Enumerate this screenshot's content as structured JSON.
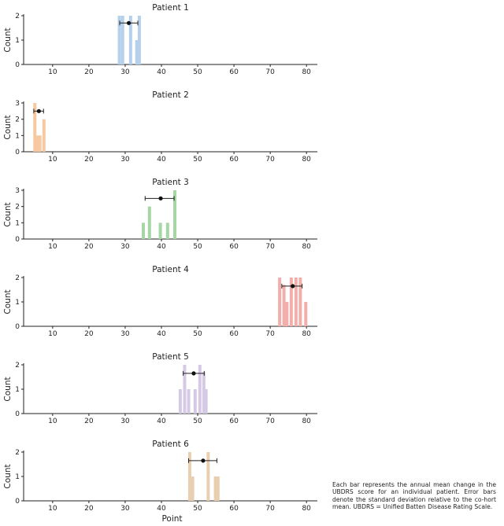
{
  "chart_data": {
    "type": "bar",
    "xlabel": "Point",
    "ylabel": "Count",
    "xlim": [
      2,
      83
    ],
    "xticks": [
      10,
      20,
      30,
      40,
      50,
      60,
      70,
      80
    ],
    "panels": [
      {
        "title": "Patient 1",
        "color": "#b4d0ea",
        "ylim": [
          0,
          2
        ],
        "yticks": [
          0,
          1,
          2
        ],
        "mean": 31,
        "sd_low": 28.5,
        "sd_high": 33.5,
        "mean_y": 1.7,
        "bars": [
          {
            "x": 28.4,
            "y": 2
          },
          {
            "x": 29.3,
            "y": 2
          },
          {
            "x": 31.5,
            "y": 2
          },
          {
            "x": 33.2,
            "y": 1
          },
          {
            "x": 33.9,
            "y": 2
          }
        ]
      },
      {
        "title": "Patient 2",
        "color": "#f6c9a1",
        "ylim": [
          0,
          3
        ],
        "yticks": [
          0,
          1,
          2,
          3
        ],
        "mean": 6.2,
        "sd_low": 4.8,
        "sd_high": 7.5,
        "mean_y": 2.5,
        "bars": [
          {
            "x": 5.1,
            "y": 3
          },
          {
            "x": 5.8,
            "y": 1
          },
          {
            "x": 6.5,
            "y": 1
          },
          {
            "x": 7.6,
            "y": 2
          }
        ]
      },
      {
        "title": "Patient 3",
        "color": "#a5d6a4",
        "ylim": [
          0,
          3
        ],
        "yticks": [
          0,
          1,
          2,
          3
        ],
        "mean": 39.8,
        "sd_low": 35.5,
        "sd_high": 43.5,
        "mean_y": 2.5,
        "bars": [
          {
            "x": 35,
            "y": 1
          },
          {
            "x": 36.7,
            "y": 2
          },
          {
            "x": 39.7,
            "y": 1
          },
          {
            "x": 41.7,
            "y": 1
          },
          {
            "x": 43.7,
            "y": 3
          }
        ]
      },
      {
        "title": "Patient 4",
        "color": "#f2aeaa",
        "ylim": [
          0,
          2
        ],
        "yticks": [
          0,
          1,
          2
        ],
        "mean": 76.2,
        "sd_low": 73.2,
        "sd_high": 78.8,
        "mean_y": 1.65,
        "bars": [
          {
            "x": 72.6,
            "y": 2
          },
          {
            "x": 73.8,
            "y": 1.7
          },
          {
            "x": 74.6,
            "y": 1
          },
          {
            "x": 75.8,
            "y": 2
          },
          {
            "x": 77.1,
            "y": 2
          },
          {
            "x": 78.3,
            "y": 2
          },
          {
            "x": 79.8,
            "y": 1
          }
        ]
      },
      {
        "title": "Patient 5",
        "color": "#d5c9e5",
        "ylim": [
          0,
          2
        ],
        "yticks": [
          0,
          1,
          2
        ],
        "mean": 48.9,
        "sd_low": 46,
        "sd_high": 51.8,
        "mean_y": 1.65,
        "bars": [
          {
            "x": 45.2,
            "y": 1
          },
          {
            "x": 46.4,
            "y": 2
          },
          {
            "x": 47.5,
            "y": 1
          },
          {
            "x": 49.3,
            "y": 1
          },
          {
            "x": 50.6,
            "y": 2
          },
          {
            "x": 51.7,
            "y": 1.7
          },
          {
            "x": 52.3,
            "y": 1
          }
        ]
      },
      {
        "title": "Patient 6",
        "color": "#e7cfb0",
        "ylim": [
          0,
          2
        ],
        "yticks": [
          0,
          1,
          2
        ],
        "mean": 51.5,
        "sd_low": 47.5,
        "sd_high": 55.3,
        "mean_y": 1.65,
        "bars": [
          {
            "x": 47.8,
            "y": 2
          },
          {
            "x": 48.6,
            "y": 1
          },
          {
            "x": 52.9,
            "y": 2
          },
          {
            "x": 54.9,
            "y": 1
          },
          {
            "x": 55.6,
            "y": 1
          }
        ]
      }
    ]
  },
  "caption": "Each bar represents the annual mean change in the UBDRS score for an individual patient. Error bars denote the standard deviation relative to the co-hort mean. UBDRS = Unified Batten Disease Rating Scale."
}
